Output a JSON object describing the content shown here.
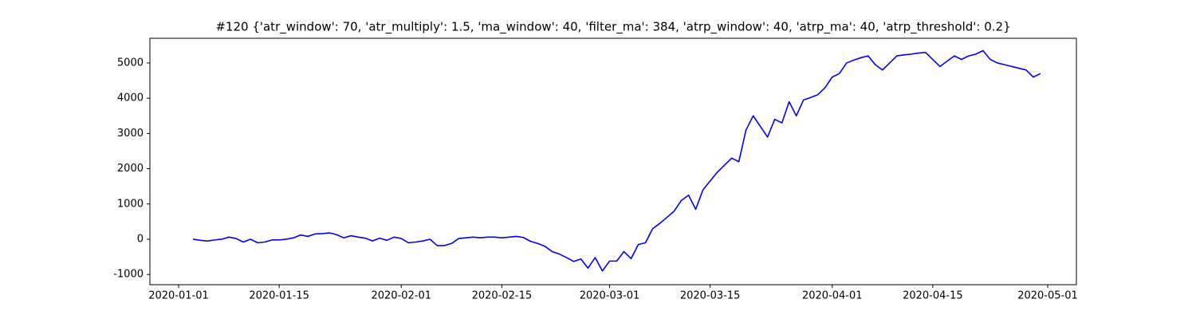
{
  "chart_data": {
    "type": "line",
    "title": "#120 {'atr_window': 70, 'atr_multiply': 1.5, 'ma_window': 40, 'filter_ma': 384, 'atrp_window': 40, 'atrp_ma': 40, 'atrp_threshold': 0.2}",
    "x": [
      "2020-01-03",
      "2020-01-04",
      "2020-01-05",
      "2020-01-06",
      "2020-01-07",
      "2020-01-08",
      "2020-01-09",
      "2020-01-10",
      "2020-01-11",
      "2020-01-12",
      "2020-01-13",
      "2020-01-14",
      "2020-01-15",
      "2020-01-16",
      "2020-01-17",
      "2020-01-18",
      "2020-01-19",
      "2020-01-20",
      "2020-01-21",
      "2020-01-22",
      "2020-01-23",
      "2020-01-24",
      "2020-01-25",
      "2020-01-26",
      "2020-01-27",
      "2020-01-28",
      "2020-01-29",
      "2020-01-30",
      "2020-01-31",
      "2020-02-01",
      "2020-02-02",
      "2020-02-03",
      "2020-02-04",
      "2020-02-05",
      "2020-02-06",
      "2020-02-07",
      "2020-02-08",
      "2020-02-09",
      "2020-02-10",
      "2020-02-11",
      "2020-02-12",
      "2020-02-13",
      "2020-02-14",
      "2020-02-15",
      "2020-02-16",
      "2020-02-17",
      "2020-02-18",
      "2020-02-19",
      "2020-02-20",
      "2020-02-21",
      "2020-02-22",
      "2020-02-23",
      "2020-02-24",
      "2020-02-25",
      "2020-02-26",
      "2020-02-27",
      "2020-02-28",
      "2020-02-29",
      "2020-03-01",
      "2020-03-02",
      "2020-03-03",
      "2020-03-04",
      "2020-03-05",
      "2020-03-06",
      "2020-03-07",
      "2020-03-08",
      "2020-03-09",
      "2020-03-10",
      "2020-03-11",
      "2020-03-12",
      "2020-03-13",
      "2020-03-14",
      "2020-03-15",
      "2020-03-16",
      "2020-03-17",
      "2020-03-18",
      "2020-03-19",
      "2020-03-20",
      "2020-03-21",
      "2020-03-22",
      "2020-03-23",
      "2020-03-24",
      "2020-03-25",
      "2020-03-26",
      "2020-03-27",
      "2020-03-28",
      "2020-03-29",
      "2020-03-30",
      "2020-03-31",
      "2020-04-01",
      "2020-04-02",
      "2020-04-03",
      "2020-04-04",
      "2020-04-05",
      "2020-04-06",
      "2020-04-07",
      "2020-04-08",
      "2020-04-09",
      "2020-04-10",
      "2020-04-11",
      "2020-04-12",
      "2020-04-13",
      "2020-04-14",
      "2020-04-15",
      "2020-04-16",
      "2020-04-17",
      "2020-04-18",
      "2020-04-19",
      "2020-04-20",
      "2020-04-21",
      "2020-04-22",
      "2020-04-23",
      "2020-04-24",
      "2020-04-25",
      "2020-04-26",
      "2020-04-27",
      "2020-04-28",
      "2020-04-29",
      "2020-04-30"
    ],
    "series": [
      {
        "color": "#0000ff",
        "values": [
          0,
          -30,
          -50,
          -20,
          0,
          60,
          20,
          -80,
          0,
          -100,
          -80,
          -20,
          -20,
          0,
          40,
          120,
          80,
          150,
          160,
          180,
          130,
          40,
          100,
          60,
          30,
          -50,
          30,
          -30,
          60,
          20,
          -100,
          -80,
          -50,
          0,
          -180,
          -180,
          -120,
          20,
          40,
          60,
          40,
          60,
          60,
          40,
          60,
          80,
          50,
          -60,
          -120,
          -200,
          -350,
          -420,
          -520,
          -630,
          -560,
          -820,
          -520,
          -900,
          -620,
          -620,
          -350,
          -550,
          -150,
          -100,
          300,
          450,
          620,
          800,
          1100,
          1250,
          850,
          1400,
          1650,
          1900,
          2100,
          2300,
          2200,
          3100,
          3500,
          3200,
          2900,
          3400,
          3300,
          3900,
          3500,
          3950,
          4020,
          4100,
          4300,
          4600,
          4700,
          5000,
          5080,
          5150,
          5200,
          4950,
          4800,
          5000,
          5200,
          5230,
          5250,
          5280,
          5300,
          5100,
          4900,
          5050,
          5200,
          5100,
          5200,
          5250,
          5350,
          5100,
          5000,
          4950,
          4900,
          4850,
          4800,
          4600,
          4700
        ]
      }
    ],
    "xlim": [
      "2019-12-28",
      "2020-05-05"
    ],
    "xticks": [
      "2020-01-01",
      "2020-01-15",
      "2020-02-01",
      "2020-02-15",
      "2020-03-01",
      "2020-03-15",
      "2020-04-01",
      "2020-04-15",
      "2020-05-01"
    ],
    "ylim": [
      -1290,
      5700
    ],
    "yticks": [
      -1000,
      0,
      1000,
      2000,
      3000,
      4000,
      5000
    ],
    "grid": false
  }
}
